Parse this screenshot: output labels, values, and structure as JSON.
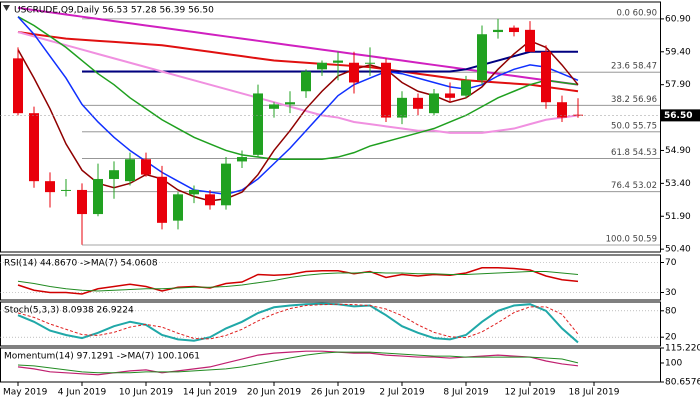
{
  "chart_data": [
    {
      "type": "candlestick",
      "title": "USCRUDE,Q9,Daily  56.53 57.28 56.39 56.50",
      "open": [
        59.1,
        56.6,
        53.5,
        53.1,
        53.1,
        52.0,
        53.6,
        53.5,
        54.5,
        53.7,
        51.7,
        52.9,
        52.9,
        52.4,
        54.4,
        54.7,
        56.8,
        57.0,
        57.6,
        58.6,
        58.9,
        58.9,
        58.9,
        58.9,
        56.4,
        57.3,
        56.6,
        57.5,
        57.4,
        58.1,
        60.3,
        60.5,
        60.4,
        59.4,
        57.1,
        56.53
      ],
      "high": [
        59.6,
        56.9,
        53.9,
        53.6,
        53.4,
        54.3,
        54.4,
        54.8,
        54.8,
        54.2,
        53.0,
        53.3,
        53.1,
        54.6,
        54.9,
        57.9,
        57.1,
        57.6,
        58.6,
        59.0,
        59.4,
        59.4,
        59.6,
        59.1,
        57.6,
        57.5,
        57.7,
        58.0,
        58.3,
        60.6,
        60.9,
        60.6,
        60.8,
        59.7,
        57.4,
        57.28
      ],
      "low": [
        56.5,
        53.2,
        52.3,
        52.8,
        50.6,
        51.9,
        52.7,
        53.3,
        53.7,
        51.3,
        51.3,
        52.5,
        52.2,
        52.2,
        54.1,
        54.6,
        56.4,
        56.6,
        57.3,
        58.3,
        58.1,
        57.5,
        58.3,
        56.2,
        56.1,
        56.5,
        56.5,
        57.1,
        57.3,
        57.9,
        60.0,
        60.1,
        59.4,
        56.8,
        56.2,
        56.39
      ],
      "close": [
        56.6,
        53.5,
        53.0,
        53.1,
        52.0,
        53.6,
        54.0,
        54.5,
        53.8,
        51.6,
        52.9,
        53.1,
        52.4,
        54.3,
        54.6,
        57.5,
        57.0,
        57.1,
        58.5,
        58.9,
        59.0,
        58.0,
        58.9,
        56.4,
        57.3,
        56.8,
        57.5,
        57.3,
        58.1,
        60.2,
        60.4,
        60.3,
        59.4,
        57.1,
        56.4,
        56.5
      ],
      "up_color": "#21a121",
      "down_color": "#e8000b",
      "series": [
        {
          "color": "#e01010",
          "width": 2,
          "values": [
            60.3,
            60.2,
            60.1,
            60.0,
            59.95,
            59.9,
            59.85,
            59.8,
            59.75,
            59.7,
            59.6,
            59.5,
            59.4,
            59.3,
            59.2,
            59.1,
            59.0,
            58.95,
            58.9,
            58.85,
            58.8,
            58.75,
            58.7,
            58.6,
            58.5,
            58.4,
            58.3,
            58.2,
            58.1,
            58.05,
            58.0,
            57.95,
            57.9,
            57.8,
            57.7,
            57.6
          ]
        },
        {
          "color": "#d020c0",
          "width": 2,
          "values": [
            61.4,
            61.3,
            61.2,
            61.1,
            61.0,
            60.9,
            60.8,
            60.7,
            60.6,
            60.5,
            60.4,
            60.3,
            60.2,
            60.1,
            60.0,
            59.9,
            59.8,
            59.7,
            59.6,
            59.5,
            59.4,
            59.3,
            59.2,
            59.1,
            59.0,
            58.9,
            58.8,
            58.7,
            58.6,
            58.5,
            58.4,
            58.3,
            58.2,
            58.1,
            58.0,
            57.9
          ]
        },
        {
          "color": "#000080",
          "width": 2,
          "values": [
            null,
            null,
            null,
            null,
            58.5,
            58.5,
            58.5,
            58.5,
            58.5,
            58.5,
            58.5,
            58.5,
            58.5,
            58.5,
            58.5,
            58.5,
            58.5,
            58.5,
            58.5,
            58.5,
            58.5,
            58.5,
            58.5,
            58.5,
            58.5,
            58.5,
            58.5,
            58.5,
            58.6,
            58.8,
            59.0,
            59.2,
            59.4,
            59.4,
            59.4,
            59.4
          ]
        },
        {
          "color": "#f090e0",
          "width": 2,
          "values": [
            60.3,
            60.1,
            59.9,
            59.7,
            59.5,
            59.3,
            59.1,
            58.9,
            58.7,
            58.5,
            58.3,
            58.1,
            57.9,
            57.7,
            57.5,
            57.3,
            57.1,
            56.9,
            56.7,
            56.5,
            56.4,
            56.2,
            56.1,
            56.0,
            55.9,
            55.8,
            55.8,
            55.7,
            55.7,
            55.7,
            55.8,
            55.9,
            56.1,
            56.3,
            56.4,
            56.5
          ]
        },
        {
          "color": "#1fa01f",
          "width": 1.5,
          "values": [
            61.0,
            60.6,
            60.1,
            59.6,
            59.0,
            58.4,
            57.9,
            57.3,
            56.8,
            56.3,
            55.9,
            55.5,
            55.2,
            54.9,
            54.7,
            54.6,
            54.5,
            54.5,
            54.5,
            54.5,
            54.6,
            54.8,
            55.1,
            55.3,
            55.5,
            55.7,
            55.9,
            56.2,
            56.5,
            56.9,
            57.3,
            57.6,
            57.9,
            58.1,
            58.0,
            57.9
          ]
        },
        {
          "color": "#1030ff",
          "width": 1.5,
          "values": [
            61.0,
            60.2,
            59.2,
            58.2,
            57.0,
            56.2,
            55.5,
            54.9,
            54.4,
            53.9,
            53.5,
            53.1,
            53.0,
            52.9,
            53.1,
            53.6,
            54.3,
            55.0,
            55.8,
            56.6,
            57.4,
            57.9,
            58.2,
            58.5,
            58.4,
            58.2,
            58.0,
            57.8,
            57.7,
            57.9,
            58.3,
            58.6,
            58.8,
            58.7,
            58.4,
            58.1
          ]
        },
        {
          "color": "#900000",
          "width": 1.5,
          "values": [
            59.5,
            58.2,
            56.8,
            55.2,
            54.0,
            53.4,
            53.2,
            53.4,
            53.8,
            53.6,
            53.1,
            52.8,
            52.6,
            52.7,
            53.0,
            53.8,
            54.9,
            55.8,
            56.8,
            57.6,
            58.3,
            58.6,
            58.8,
            58.6,
            58.0,
            57.6,
            57.4,
            57.1,
            57.3,
            57.8,
            58.6,
            59.3,
            59.9,
            59.6,
            58.8,
            57.9
          ]
        }
      ],
      "levels": [
        {
          "value": 60.9,
          "label": "0.0 60.90"
        },
        {
          "value": 58.47,
          "label": "23.6 58.47"
        },
        {
          "value": 56.96,
          "label": "38.2 56.96"
        },
        {
          "value": 55.75,
          "label": "50.0 55.75"
        },
        {
          "value": 54.53,
          "label": "61.8 54.53"
        },
        {
          "value": 53.02,
          "label": "76.4 53.02"
        },
        {
          "value": 50.59,
          "label": "100.0 50.59"
        }
      ],
      "last_price": {
        "value": 56.5,
        "label": "56.50"
      },
      "ylim": [
        50.27,
        61.67
      ],
      "yticks": [
        {
          "value": 60.9,
          "label": "60.90"
        },
        {
          "value": 59.4,
          "label": "59.40"
        },
        {
          "value": 57.9,
          "label": "57.90"
        },
        {
          "value": 54.9,
          "label": "54.90"
        },
        {
          "value": 53.4,
          "label": "53.40"
        },
        {
          "value": 51.9,
          "label": "51.90"
        },
        {
          "value": 50.4,
          "label": "50.40"
        }
      ],
      "xticks": [
        {
          "value": 0,
          "label": "29 May 2019"
        },
        {
          "value": 4,
          "label": "4 Jun 2019"
        },
        {
          "value": 8,
          "label": "10 Jun 2019"
        },
        {
          "value": 12,
          "label": "14 Jun 2019"
        },
        {
          "value": 16,
          "label": "20 Jun 2019"
        },
        {
          "value": 20,
          "label": "26 Jun 2019"
        },
        {
          "value": 24,
          "label": "2 Jul 2019"
        },
        {
          "value": 28,
          "label": "8 Jul 2019"
        },
        {
          "value": 32,
          "label": "12 Jul 2019"
        },
        {
          "value": 36,
          "label": "18 Jul 2019"
        }
      ]
    },
    {
      "type": "line",
      "title": "RSI(14) 44.8670 ->MA(7) 54.0608",
      "ylim": [
        20,
        80
      ],
      "yticks": [
        70,
        30
      ],
      "grid": true,
      "series": [
        {
          "color": "#d00000",
          "width": 1.5,
          "values": [
            40,
            33,
            30,
            30,
            28,
            35,
            38,
            41,
            38,
            32,
            37,
            38,
            36,
            42,
            44,
            54,
            53,
            54,
            58,
            59,
            59,
            55,
            58,
            50,
            54,
            52,
            54,
            53,
            56,
            63,
            63,
            62,
            60,
            52,
            47,
            44.867
          ]
        },
        {
          "color": "#228b22",
          "width": 1,
          "values": [
            45,
            42,
            38,
            35,
            33,
            32,
            33,
            34,
            35,
            35,
            36,
            37,
            37,
            38,
            40,
            43,
            46,
            50,
            53,
            55,
            56,
            56,
            57,
            56,
            56,
            55,
            55,
            54,
            54,
            55,
            56,
            57,
            58,
            58,
            56,
            54.0608
          ]
        }
      ]
    },
    {
      "type": "line",
      "title": "Stoch(5,3,3) 8.0938 26.9224",
      "ylim": [
        0,
        100
      ],
      "yticks": [
        80,
        20
      ],
      "grid": true,
      "series": [
        {
          "color": "#20a8a8",
          "width": 2,
          "values": [
            70,
            55,
            35,
            25,
            18,
            30,
            45,
            55,
            48,
            25,
            15,
            12,
            20,
            40,
            55,
            75,
            88,
            92,
            95,
            96,
            95,
            90,
            92,
            70,
            45,
            30,
            18,
            15,
            25,
            55,
            80,
            92,
            95,
            80,
            40,
            8.0938
          ]
        },
        {
          "color": "#e02020",
          "width": 1,
          "dash": true,
          "values": [
            75,
            65,
            50,
            38,
            26,
            24,
            31,
            43,
            49,
            43,
            29,
            17,
            16,
            24,
            38,
            57,
            73,
            85,
            92,
            94,
            95,
            94,
            92,
            84,
            69,
            48,
            31,
            21,
            19,
            32,
            53,
            76,
            89,
            89,
            72,
            26.9224
          ]
        }
      ]
    },
    {
      "type": "line",
      "title": "Momentum(14) 97.1291 ->MA(7) 100.1061",
      "ylim": [
        80.6576,
        115.2206
      ],
      "yticks": [
        {
          "value": 115.2206,
          "label": "115.2206"
        },
        100,
        {
          "value": 80.6576,
          "label": "80.6576"
        }
      ],
      "grid": false,
      "series": [
        {
          "color": "#c02070",
          "width": 1.2,
          "values": [
            96,
            94,
            91,
            90,
            89,
            88,
            90,
            92,
            93,
            90,
            92,
            94,
            96,
            100,
            104,
            108,
            110,
            111,
            112,
            112,
            111,
            110,
            110,
            108,
            107,
            106,
            106,
            105,
            106,
            107,
            108,
            107,
            106,
            102,
            99,
            97.1291
          ]
        },
        {
          "color": "#228b22",
          "width": 1,
          "values": [
            98,
            97,
            95,
            93,
            91,
            90,
            90,
            90,
            91,
            91,
            91,
            92,
            93,
            94,
            96,
            99,
            102,
            105,
            108,
            110,
            111,
            111,
            111,
            110,
            109,
            108,
            107,
            107,
            106,
            106,
            106,
            106,
            106,
            105,
            104,
            100.1061
          ]
        }
      ]
    }
  ]
}
